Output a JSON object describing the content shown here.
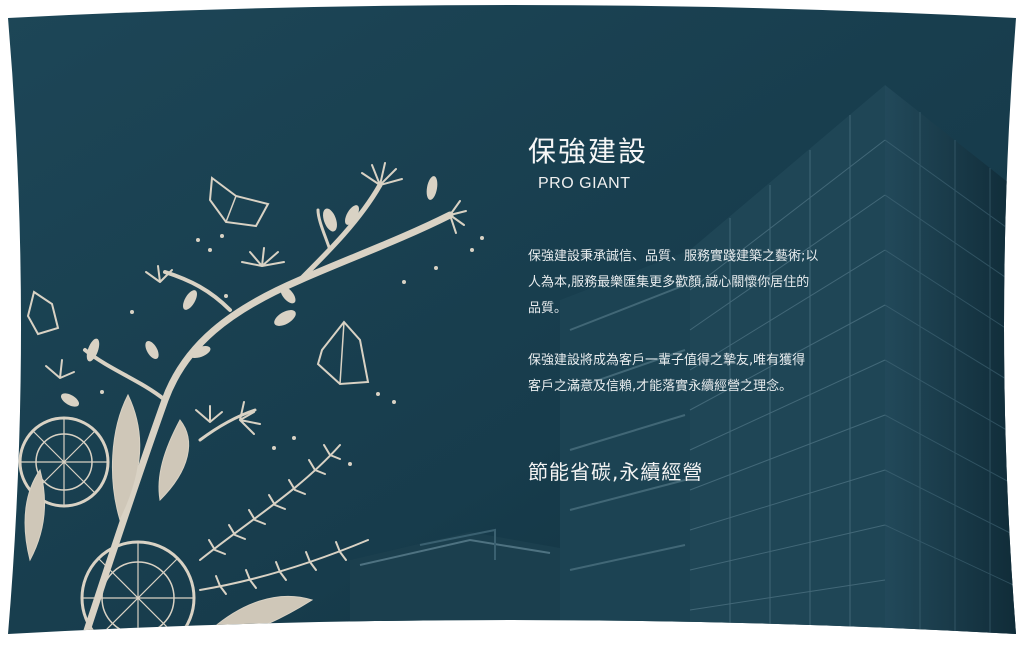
{
  "hero": {
    "title": "保強建設",
    "subtitle": "PRO GIANT",
    "paragraph_1": "保強建設秉承誠信、品質、服務實踐建築之藝術;以\n人為本,服務最樂匯集更多歡顏,誠心關懷你居住的\n品質。",
    "paragraph_2": "保強建設將成為客戶一輩子值得之摯友,唯有獲得\n客戶之滿意及信賴,才能落實永續經營之理念。",
    "slogan": "節能省碳,永續經營"
  },
  "images": {
    "embroidery": "embroidered-branch-illustration",
    "building": "office-tower-photo"
  },
  "colors": {
    "background": "#1a4152",
    "text": "#f2f2f2",
    "thread": "#d9d2c4"
  }
}
